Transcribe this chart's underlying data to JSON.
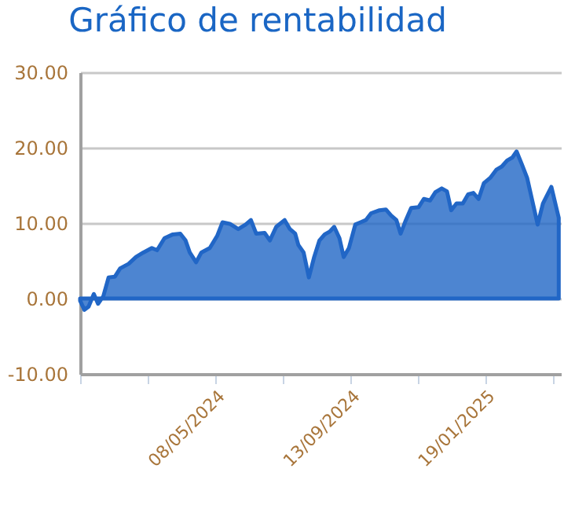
{
  "chart_data": {
    "type": "area",
    "title": "Gráfico de rentabilidad",
    "x": [
      "2024-01-01",
      "2024-01-05",
      "2024-01-09",
      "2024-01-14",
      "2024-01-18",
      "2024-01-23",
      "2024-01-28",
      "2024-02-03",
      "2024-02-08",
      "2024-02-16",
      "2024-02-23",
      "2024-03-01",
      "2024-03-09",
      "2024-03-14",
      "2024-03-21",
      "2024-03-29",
      "2024-04-05",
      "2024-04-10",
      "2024-04-14",
      "2024-04-20",
      "2024-04-25",
      "2024-05-03",
      "2024-05-10",
      "2024-05-15",
      "2024-05-22",
      "2024-05-30",
      "2024-06-06",
      "2024-06-11",
      "2024-06-16",
      "2024-06-24",
      "2024-06-29",
      "2024-07-05",
      "2024-07-13",
      "2024-07-18",
      "2024-07-23",
      "2024-07-26",
      "2024-07-31",
      "2024-08-05",
      "2024-08-10",
      "2024-08-15",
      "2024-08-20",
      "2024-08-25",
      "2024-08-29",
      "2024-09-03",
      "2024-09-07",
      "2024-09-12",
      "2024-09-18",
      "2024-09-23",
      "2024-09-28",
      "2024-10-03",
      "2024-10-11",
      "2024-10-17",
      "2024-10-22",
      "2024-10-27",
      "2024-10-31",
      "2024-11-05",
      "2024-11-10",
      "2024-11-17",
      "2024-11-22",
      "2024-11-28",
      "2024-12-03",
      "2024-12-09",
      "2024-12-14",
      "2024-12-18",
      "2024-12-23",
      "2024-12-29",
      "2025-01-03",
      "2025-01-08",
      "2025-01-13",
      "2025-01-18",
      "2025-01-24",
      "2025-01-30",
      "2025-02-04",
      "2025-02-09",
      "2025-02-14",
      "2025-02-18",
      "2025-02-23",
      "2025-02-28",
      "2025-03-05",
      "2025-03-10",
      "2025-03-15",
      "2025-03-23",
      "2025-03-30"
    ],
    "values": [
      -0.3,
      -1.5,
      -1.1,
      0.6,
      -0.7,
      0.3,
      2.8,
      2.9,
      4.0,
      4.6,
      5.5,
      6.1,
      6.7,
      6.4,
      8.0,
      8.5,
      8.6,
      7.7,
      6.1,
      4.8,
      6.1,
      6.7,
      8.3,
      10.1,
      9.9,
      9.2,
      9.8,
      10.4,
      8.6,
      8.7,
      7.7,
      9.5,
      10.4,
      9.2,
      8.6,
      7.1,
      6.1,
      2.8,
      5.5,
      7.7,
      8.5,
      8.9,
      9.5,
      8.0,
      5.5,
      6.7,
      9.8,
      10.1,
      10.4,
      11.3,
      11.7,
      11.8,
      11.0,
      10.4,
      8.6,
      10.4,
      12.0,
      12.1,
      13.2,
      13.0,
      14.1,
      14.6,
      14.2,
      11.7,
      12.6,
      12.6,
      13.8,
      14.0,
      13.2,
      15.3,
      16.0,
      17.1,
      17.5,
      18.3,
      18.7,
      19.5,
      17.8,
      16.0,
      12.9,
      9.8,
      12.6,
      14.8,
      10.7
    ],
    "color": "#2166c6",
    "xlim": [
      "2024-01-01",
      "2025-04-01"
    ],
    "xticks": [
      {
        "value": "2024-01-01",
        "label": null
      },
      {
        "value": "2024-03-05",
        "label": null
      },
      {
        "value": "2024-05-08",
        "label": "08/05/2024"
      },
      {
        "value": "2024-07-11",
        "label": null
      },
      {
        "value": "2024-09-13",
        "label": "13/09/2024"
      },
      {
        "value": "2024-11-16",
        "label": null
      },
      {
        "value": "2025-01-19",
        "label": "19/01/2025"
      },
      {
        "value": "2025-03-25",
        "label": null
      }
    ],
    "ylim": [
      -10,
      30
    ],
    "yticks": [
      {
        "value": -10,
        "label": "-10.00"
      },
      {
        "value": 0,
        "label": "0.00"
      },
      {
        "value": 10,
        "label": "10.00"
      },
      {
        "value": 20,
        "label": "20.00"
      },
      {
        "value": 30,
        "label": "30.00"
      }
    ],
    "grid": "y",
    "legend": false
  }
}
